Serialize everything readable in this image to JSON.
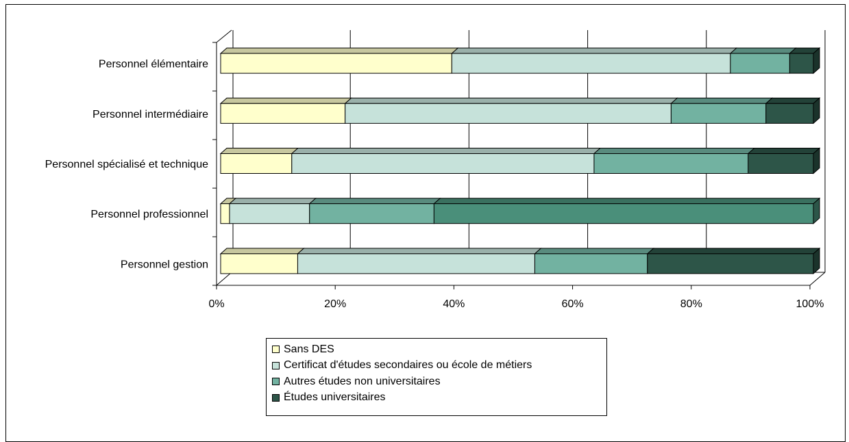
{
  "chart_data": {
    "type": "bar",
    "orientation": "horizontal",
    "stacked": "percent",
    "categories": [
      "Personnel élémentaire",
      "Personnel intermédiaire",
      "Personnel spécialisé et technique",
      "Personnel professionnel",
      "Personnel gestion"
    ],
    "series": [
      {
        "name": "Sans DES",
        "color": "#ffffcc",
        "values": [
          39,
          21,
          12,
          1.5,
          13
        ]
      },
      {
        "name": "Certificat d'études secondaires ou école de métiers",
        "color": "#c6e2da",
        "values": [
          47,
          55,
          51,
          13.5,
          40
        ]
      },
      {
        "name": "Autres études non universitaires",
        "color": "#72b2a1",
        "values": [
          10,
          16,
          26,
          21,
          19
        ]
      },
      {
        "name": "Études universitaires",
        "color": "#2d5548",
        "values": [
          4,
          8,
          11,
          64,
          28
        ]
      }
    ],
    "special_colors": {
      "Personnel professionnel|Études universitaires": "#4a8f7a"
    },
    "x_ticks": [
      "0%",
      "20%",
      "40%",
      "60%",
      "80%",
      "100%"
    ],
    "xlim": [
      0,
      100
    ],
    "xlabel": "",
    "ylabel": "",
    "title": "",
    "grid": true,
    "legend_position": "bottom",
    "three_d": true
  }
}
